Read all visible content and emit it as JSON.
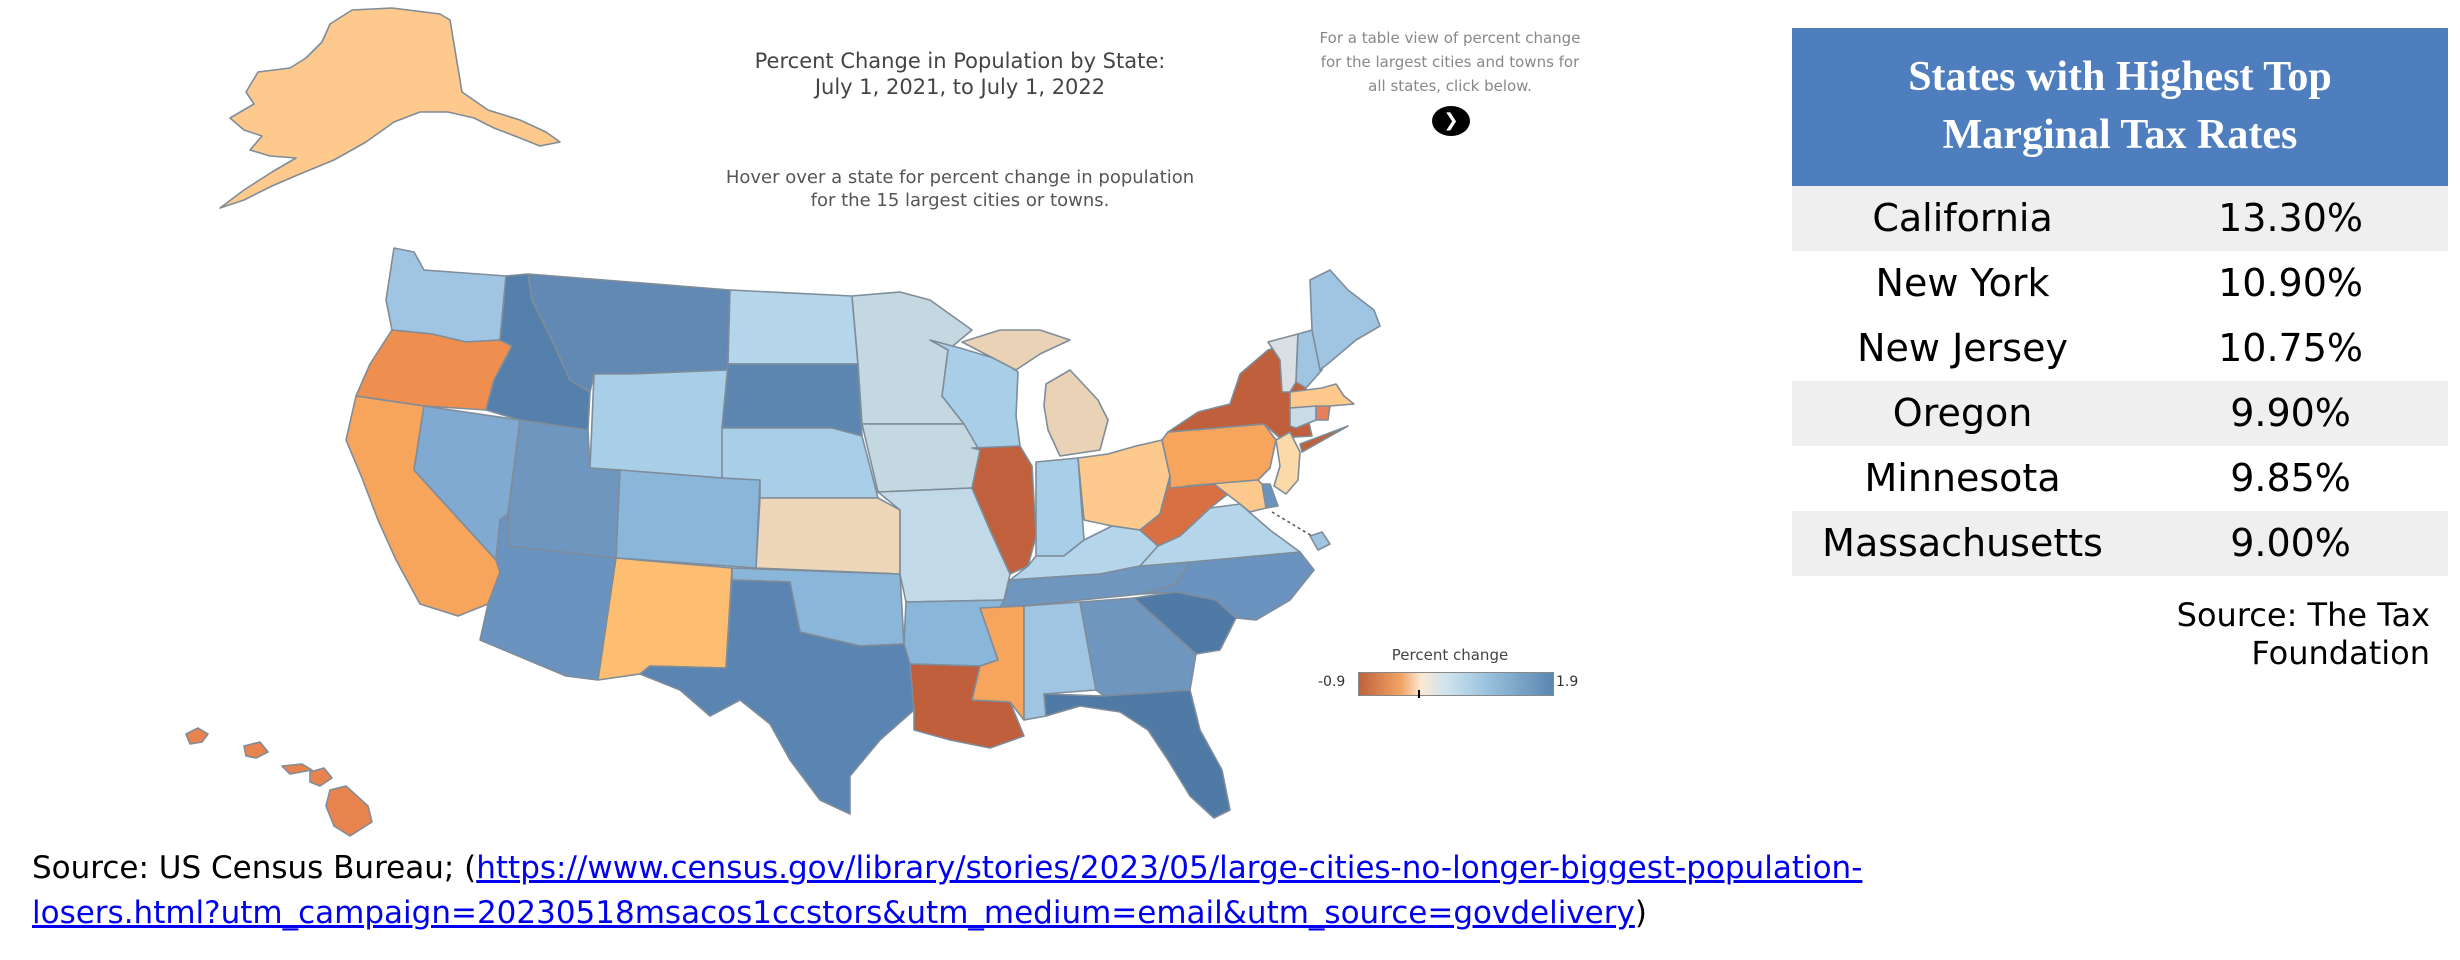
{
  "map": {
    "title_line1": "Percent Change in Population by State:",
    "title_line2": "July 1, 2021, to July 1, 2022",
    "hover_line1": "Hover over a state for percent change in population",
    "hover_line2": "for the 15 largest cities or towns.",
    "table_note_line1": "For a table view of percent change",
    "table_note_line2": "for the largest cities and towns for",
    "table_note_line3": "all states, click below.",
    "arrow_icon": "chevron-right-icon",
    "legend": {
      "title": "Percent change",
      "min_label": "-0.9",
      "max_label": "1.9",
      "min": -0.9,
      "max": 1.9,
      "color_low": "#c0623d",
      "color_high": "#5a86b0"
    },
    "state_colors": {
      "alaska": "#fdc98c",
      "hawaii": "#e8834e",
      "washington": "#9fc5e2",
      "oregon": "#ef8f4f",
      "california": "#f7a45c",
      "nevada": "#80aad2",
      "idaho": "#5680ac",
      "montana": "#6189b4",
      "wyoming": "#a8cfe7",
      "utah": "#6e96bf",
      "colorado": "#8ab6da",
      "arizona": "#6b93bf",
      "new_mexico": "#fdbe72",
      "north_dakota": "#b5d6ea",
      "south_dakota": "#5d86b1",
      "nebraska": "#a8cfe7",
      "kansas": "#eed6b8",
      "oklahoma": "#8ab6da",
      "texas": "#5a84b1",
      "minnesota": "#c4d8e2",
      "iowa": "#c4d8e2",
      "missouri": "#c2d9e8",
      "arkansas": "#8ab6da",
      "louisiana": "#bf5f3b",
      "wisconsin": "#a8cfe7",
      "illinois": "#c0603d",
      "michigan": "#ead2b6",
      "indiana": "#a8cfe7",
      "ohio": "#fdc98c",
      "kentucky": "#b5d6ea",
      "tennessee": "#6e96bf",
      "mississippi": "#f7a45c",
      "alabama": "#9fc5e2",
      "georgia": "#6e96bf",
      "florida": "#4f7aa6",
      "south_carolina": "#4f7aa6",
      "north_carolina": "#6b93bf",
      "virginia": "#b5d6ea",
      "west_virginia": "#d97043",
      "pennsylvania": "#f7a45c",
      "new_york": "#bf5f3b",
      "vermont": "#d9dfe2",
      "new_hampshire": "#9fc5e2",
      "maine": "#9fc5e2",
      "massachusetts": "#fdc98c",
      "connecticut": "#c8dbe6",
      "rhode_island": "#e5805a",
      "new_jersey": "#fbd9a8",
      "delaware": "#6b93bf",
      "maryland": "#fdc98c",
      "dc": "#9fc5e2"
    }
  },
  "tax_table": {
    "title_line1": "States with Highest Top",
    "title_line2": "Marginal Tax Rates",
    "rows": [
      {
        "state": "California",
        "rate": "13.30%"
      },
      {
        "state": "New York",
        "rate": "10.90%"
      },
      {
        "state": "New Jersey",
        "rate": "10.75%"
      },
      {
        "state": "Oregon",
        "rate": "9.90%"
      },
      {
        "state": "Minnesota",
        "rate": "9.85%"
      },
      {
        "state": "Massachusetts",
        "rate": "9.00%"
      }
    ],
    "source": "Source: The Tax Foundation"
  },
  "census_source": {
    "prefix": "Source: US Census Bureau; (",
    "link_line1": "https://www.census.gov/library/stories/2023/05/large-cities-no-longer-biggest-population-",
    "link_line2": "losers.html?utm_campaign=20230518msacos1ccstors&utm_medium=email&utm_source=govdelivery",
    "suffix": ")"
  }
}
